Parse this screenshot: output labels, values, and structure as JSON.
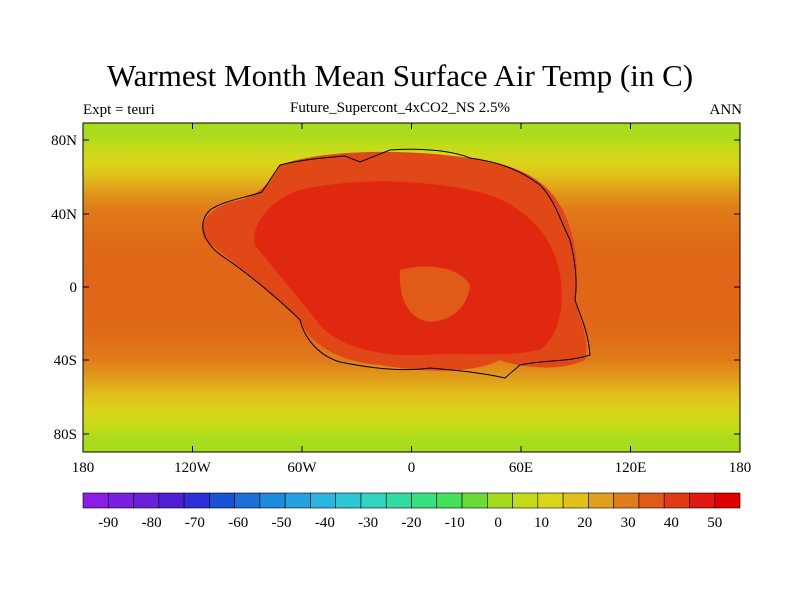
{
  "title": "Warmest Month Mean Surface Air Temp (in C)",
  "subtitle_left": "Expt = teuri",
  "subtitle_center": "Future_Supercont_4xCO2_NS 2.5%",
  "subtitle_right": "ANN",
  "map": {
    "lat_ticks": [
      "80N",
      "40N",
      "0",
      "40S",
      "80S"
    ],
    "lon_ticks": [
      "180",
      "120W",
      "60W",
      "0",
      "60E",
      "120E",
      "180"
    ]
  },
  "colorbar": {
    "labels": [
      "-90",
      "-80",
      "-70",
      "-60",
      "-50",
      "-40",
      "-30",
      "-20",
      "-10",
      "0",
      "10",
      "20",
      "30",
      "40",
      "50"
    ],
    "colors": [
      "#8a1de6",
      "#7a1ee0",
      "#6a1fd9",
      "#4f1fd6",
      "#2f2fd8",
      "#1a52d6",
      "#1c6fd8",
      "#1f8bdc",
      "#24a2df",
      "#28b7df",
      "#2cc7d4",
      "#2fd5bf",
      "#30dca0",
      "#36e07c",
      "#45e15a",
      "#6bdb36",
      "#a4dc1d",
      "#c2dc19",
      "#d9d61a",
      "#e0c01a",
      "#e0a01b",
      "#e07c1a",
      "#e05a18",
      "#e03a15",
      "#e01a10",
      "#e00000"
    ]
  },
  "chart_data": {
    "type": "heatmap",
    "title": "Warmest Month Mean Surface Air Temp (in C)",
    "subtitle": "Future_Supercont_4xCO2_NS 2.5%",
    "units": "C",
    "x_range": [
      -180,
      180
    ],
    "y_range": [
      -90,
      90
    ],
    "x_ticks": [
      "180",
      "120W",
      "60W",
      "0",
      "60E",
      "120E",
      "180"
    ],
    "y_ticks": [
      "80N",
      "40N",
      "0",
      "40S",
      "80S"
    ],
    "levels": [
      -90,
      -80,
      -70,
      -60,
      -50,
      -40,
      -30,
      -20,
      -10,
      0,
      10,
      20,
      30,
      40,
      50
    ],
    "approx_zonal_values": [
      {
        "lat": 85,
        "value": 10
      },
      {
        "lat": 65,
        "value": 20
      },
      {
        "lat": 45,
        "value": 30
      },
      {
        "lat": 20,
        "value": 35
      },
      {
        "lat": 0,
        "value": 35
      },
      {
        "lat": -20,
        "value": 35
      },
      {
        "lat": -45,
        "value": 30
      },
      {
        "lat": -65,
        "value": 20
      },
      {
        "lat": -85,
        "value": 10
      }
    ],
    "continent_max_value": 50
  }
}
